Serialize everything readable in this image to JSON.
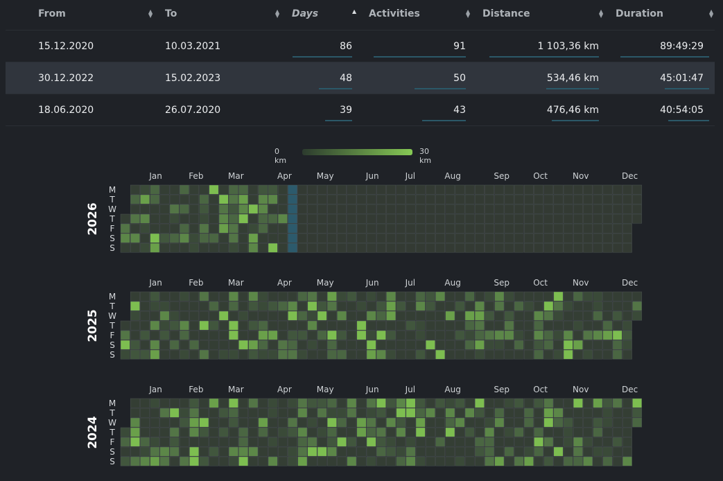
{
  "table": {
    "headers": [
      "From",
      "To",
      "Days",
      "Activities",
      "Distance",
      "Duration"
    ],
    "rows": [
      {
        "from": "15.12.2020",
        "to": "10.03.2021",
        "days": "86",
        "activities": "91",
        "distance": "1 103,36 km",
        "duration": "89:49:29"
      },
      {
        "from": "30.12.2022",
        "to": "15.02.2023",
        "days": "48",
        "activities": "50",
        "distance": "534,46 km",
        "duration": "45:01:47"
      },
      {
        "from": "18.06.2020",
        "to": "26.07.2020",
        "days": "39",
        "activities": "43",
        "distance": "476,46 km",
        "duration": "40:54:05"
      }
    ],
    "selected_row": 1
  },
  "legend": {
    "min_label": "0 km",
    "max_label": "30 km",
    "low_color": "#2c3b2e",
    "high_color": "#86c955"
  },
  "heatmaps": [
    {
      "year": "2026",
      "weeks": 53,
      "months": [
        "Jan",
        "Feb",
        "Mar",
        "Apr",
        "May",
        "Jun",
        "Jul",
        "Aug",
        "Sep",
        "Oct",
        "Nov",
        "Dec"
      ],
      "month_week": [
        2,
        6,
        10,
        15,
        19,
        24,
        28,
        32,
        37,
        41,
        45,
        50
      ],
      "highlight_week": 17
    },
    {
      "year": "2025",
      "weeks": 53,
      "months": [
        "Jan",
        "Feb",
        "Mar",
        "Apr",
        "May",
        "Jun",
        "Jul",
        "Aug",
        "Sep",
        "Oct",
        "Nov",
        "Dec"
      ],
      "month_week": [
        2,
        6,
        10,
        15,
        19,
        24,
        28,
        32,
        37,
        41,
        45,
        50
      ]
    },
    {
      "year": "2024",
      "weeks": 53,
      "months": [
        "Jan",
        "Feb",
        "Mar",
        "Apr",
        "May",
        "Jun",
        "Jul",
        "Aug",
        "Sep",
        "Oct",
        "Nov",
        "Dec"
      ],
      "month_week": [
        2,
        6,
        10,
        15,
        19,
        24,
        28,
        32,
        37,
        41,
        45,
        50
      ]
    }
  ],
  "day_labels": [
    "M",
    "T",
    "W",
    "T",
    "F",
    "S",
    "S"
  ],
  "colors": {
    "empty": "#333a33",
    "highlight": "#2c5a6c"
  }
}
